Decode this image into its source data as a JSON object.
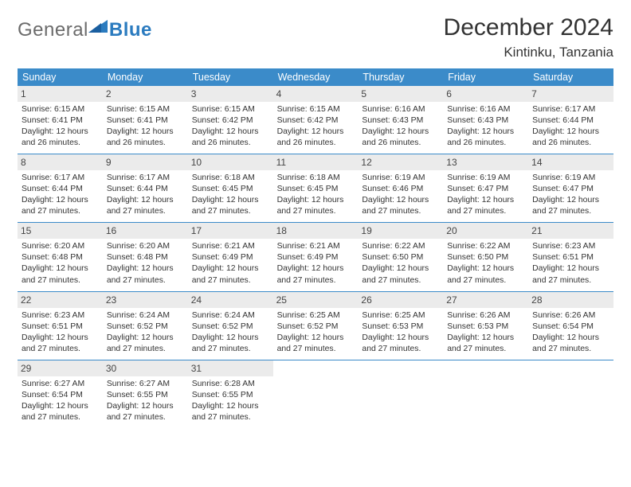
{
  "brand": {
    "part1": "General",
    "part2": "Blue"
  },
  "title": "December 2024",
  "location": "Kintinku, Tanzania",
  "colors": {
    "header_bg": "#3b8bc9",
    "daynum_bg": "#ebebeb",
    "week_border": "#3b8bc9",
    "logo_gray": "#6b6b6b",
    "logo_blue": "#2b7bbf",
    "text": "#333333"
  },
  "day_names": [
    "Sunday",
    "Monday",
    "Tuesday",
    "Wednesday",
    "Thursday",
    "Friday",
    "Saturday"
  ],
  "weeks": [
    [
      {
        "n": "1",
        "sr": "Sunrise: 6:15 AM",
        "ss": "Sunset: 6:41 PM",
        "dl": "Daylight: 12 hours and 26 minutes."
      },
      {
        "n": "2",
        "sr": "Sunrise: 6:15 AM",
        "ss": "Sunset: 6:41 PM",
        "dl": "Daylight: 12 hours and 26 minutes."
      },
      {
        "n": "3",
        "sr": "Sunrise: 6:15 AM",
        "ss": "Sunset: 6:42 PM",
        "dl": "Daylight: 12 hours and 26 minutes."
      },
      {
        "n": "4",
        "sr": "Sunrise: 6:15 AM",
        "ss": "Sunset: 6:42 PM",
        "dl": "Daylight: 12 hours and 26 minutes."
      },
      {
        "n": "5",
        "sr": "Sunrise: 6:16 AM",
        "ss": "Sunset: 6:43 PM",
        "dl": "Daylight: 12 hours and 26 minutes."
      },
      {
        "n": "6",
        "sr": "Sunrise: 6:16 AM",
        "ss": "Sunset: 6:43 PM",
        "dl": "Daylight: 12 hours and 26 minutes."
      },
      {
        "n": "7",
        "sr": "Sunrise: 6:17 AM",
        "ss": "Sunset: 6:44 PM",
        "dl": "Daylight: 12 hours and 26 minutes."
      }
    ],
    [
      {
        "n": "8",
        "sr": "Sunrise: 6:17 AM",
        "ss": "Sunset: 6:44 PM",
        "dl": "Daylight: 12 hours and 27 minutes."
      },
      {
        "n": "9",
        "sr": "Sunrise: 6:17 AM",
        "ss": "Sunset: 6:44 PM",
        "dl": "Daylight: 12 hours and 27 minutes."
      },
      {
        "n": "10",
        "sr": "Sunrise: 6:18 AM",
        "ss": "Sunset: 6:45 PM",
        "dl": "Daylight: 12 hours and 27 minutes."
      },
      {
        "n": "11",
        "sr": "Sunrise: 6:18 AM",
        "ss": "Sunset: 6:45 PM",
        "dl": "Daylight: 12 hours and 27 minutes."
      },
      {
        "n": "12",
        "sr": "Sunrise: 6:19 AM",
        "ss": "Sunset: 6:46 PM",
        "dl": "Daylight: 12 hours and 27 minutes."
      },
      {
        "n": "13",
        "sr": "Sunrise: 6:19 AM",
        "ss": "Sunset: 6:47 PM",
        "dl": "Daylight: 12 hours and 27 minutes."
      },
      {
        "n": "14",
        "sr": "Sunrise: 6:19 AM",
        "ss": "Sunset: 6:47 PM",
        "dl": "Daylight: 12 hours and 27 minutes."
      }
    ],
    [
      {
        "n": "15",
        "sr": "Sunrise: 6:20 AM",
        "ss": "Sunset: 6:48 PM",
        "dl": "Daylight: 12 hours and 27 minutes."
      },
      {
        "n": "16",
        "sr": "Sunrise: 6:20 AM",
        "ss": "Sunset: 6:48 PM",
        "dl": "Daylight: 12 hours and 27 minutes."
      },
      {
        "n": "17",
        "sr": "Sunrise: 6:21 AM",
        "ss": "Sunset: 6:49 PM",
        "dl": "Daylight: 12 hours and 27 minutes."
      },
      {
        "n": "18",
        "sr": "Sunrise: 6:21 AM",
        "ss": "Sunset: 6:49 PM",
        "dl": "Daylight: 12 hours and 27 minutes."
      },
      {
        "n": "19",
        "sr": "Sunrise: 6:22 AM",
        "ss": "Sunset: 6:50 PM",
        "dl": "Daylight: 12 hours and 27 minutes."
      },
      {
        "n": "20",
        "sr": "Sunrise: 6:22 AM",
        "ss": "Sunset: 6:50 PM",
        "dl": "Daylight: 12 hours and 27 minutes."
      },
      {
        "n": "21",
        "sr": "Sunrise: 6:23 AM",
        "ss": "Sunset: 6:51 PM",
        "dl": "Daylight: 12 hours and 27 minutes."
      }
    ],
    [
      {
        "n": "22",
        "sr": "Sunrise: 6:23 AM",
        "ss": "Sunset: 6:51 PM",
        "dl": "Daylight: 12 hours and 27 minutes."
      },
      {
        "n": "23",
        "sr": "Sunrise: 6:24 AM",
        "ss": "Sunset: 6:52 PM",
        "dl": "Daylight: 12 hours and 27 minutes."
      },
      {
        "n": "24",
        "sr": "Sunrise: 6:24 AM",
        "ss": "Sunset: 6:52 PM",
        "dl": "Daylight: 12 hours and 27 minutes."
      },
      {
        "n": "25",
        "sr": "Sunrise: 6:25 AM",
        "ss": "Sunset: 6:52 PM",
        "dl": "Daylight: 12 hours and 27 minutes."
      },
      {
        "n": "26",
        "sr": "Sunrise: 6:25 AM",
        "ss": "Sunset: 6:53 PM",
        "dl": "Daylight: 12 hours and 27 minutes."
      },
      {
        "n": "27",
        "sr": "Sunrise: 6:26 AM",
        "ss": "Sunset: 6:53 PM",
        "dl": "Daylight: 12 hours and 27 minutes."
      },
      {
        "n": "28",
        "sr": "Sunrise: 6:26 AM",
        "ss": "Sunset: 6:54 PM",
        "dl": "Daylight: 12 hours and 27 minutes."
      }
    ],
    [
      {
        "n": "29",
        "sr": "Sunrise: 6:27 AM",
        "ss": "Sunset: 6:54 PM",
        "dl": "Daylight: 12 hours and 27 minutes."
      },
      {
        "n": "30",
        "sr": "Sunrise: 6:27 AM",
        "ss": "Sunset: 6:55 PM",
        "dl": "Daylight: 12 hours and 27 minutes."
      },
      {
        "n": "31",
        "sr": "Sunrise: 6:28 AM",
        "ss": "Sunset: 6:55 PM",
        "dl": "Daylight: 12 hours and 27 minutes."
      },
      null,
      null,
      null,
      null
    ]
  ]
}
